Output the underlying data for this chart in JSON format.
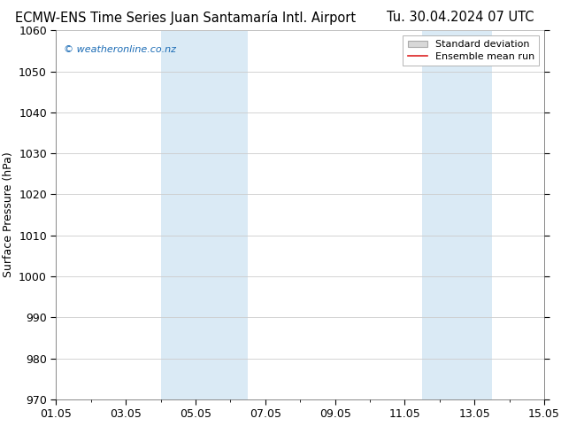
{
  "title_left": "ECMW-ENS Time Series Juan Santamaría Intl. Airport",
  "title_right": "Tu. 30.04.2024 07 UTC",
  "ylabel": "Surface Pressure (hPa)",
  "ylim": [
    970,
    1060
  ],
  "yticks": [
    970,
    980,
    990,
    1000,
    1010,
    1020,
    1030,
    1040,
    1050,
    1060
  ],
  "xtick_labels": [
    "01.05",
    "03.05",
    "05.05",
    "07.05",
    "09.05",
    "11.05",
    "13.05",
    "15.05"
  ],
  "xtick_positions": [
    0,
    2,
    4,
    6,
    8,
    10,
    12,
    14
  ],
  "xlim": [
    0,
    14
  ],
  "shade_bands": [
    {
      "xstart": 3.0,
      "xend": 5.5
    },
    {
      "xstart": 10.5,
      "xend": 12.5
    }
  ],
  "shade_color": "#daeaf5",
  "background_color": "#ffffff",
  "plot_bg_color": "#ffffff",
  "grid_color": "#cccccc",
  "watermark": "© weatheronline.co.nz",
  "watermark_color": "#1a6bb5",
  "legend_std_facecolor": "#d8d8d8",
  "legend_std_edgecolor": "#aaaaaa",
  "legend_mean_color": "#dd2222",
  "title_fontsize": 10.5,
  "ylabel_fontsize": 9,
  "tick_fontsize": 9,
  "legend_fontsize": 8,
  "watermark_fontsize": 8
}
